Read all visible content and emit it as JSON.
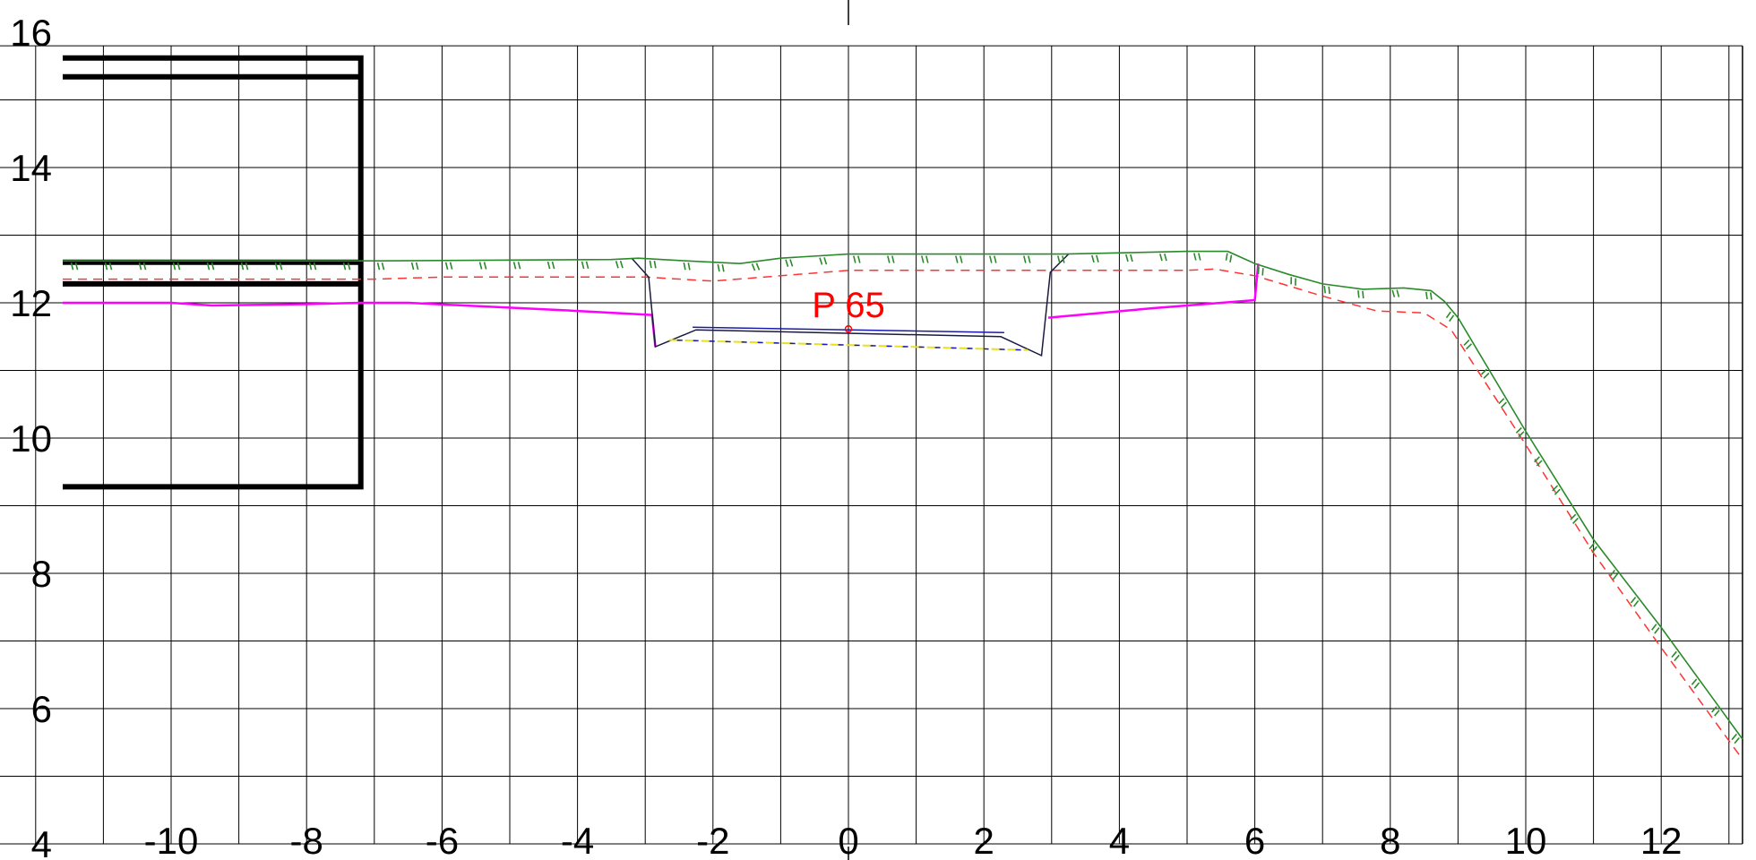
{
  "drawing": {
    "x_ticks": [
      "-10",
      "-8",
      "-6",
      "-4",
      "-2",
      "0",
      "2",
      "4",
      "6",
      "8",
      "10",
      "12"
    ],
    "y_ticks": [
      "4",
      "6",
      "8",
      "10",
      "12",
      "14",
      "16"
    ],
    "x_range": [
      -13.2,
      13.2
    ],
    "y_range": [
      4,
      16
    ],
    "grid": true,
    "point_label": "P 65",
    "point": {
      "x": 0,
      "y": 11.6
    },
    "colors": {
      "grid": "#000000",
      "terrain": "#2a8a2a",
      "hatch": "#2a8a2a",
      "design": "#ff3333",
      "magenta": "#ff00ff",
      "label": "#ff0000",
      "blue": "#1a1aa8",
      "yellow": "#e8e020",
      "structure": "#000000"
    },
    "lines": {
      "terrain": [
        [
          -11.6,
          12.62
        ],
        [
          -6.9,
          12.62
        ],
        [
          -3.5,
          12.64
        ],
        [
          -3.1,
          12.66
        ],
        [
          -2.4,
          12.62
        ],
        [
          -1.6,
          12.58
        ],
        [
          -1,
          12.66
        ],
        [
          0,
          12.72
        ],
        [
          1,
          12.72
        ],
        [
          2,
          12.72
        ],
        [
          3.2,
          12.72
        ],
        [
          5,
          12.76
        ],
        [
          5.6,
          12.76
        ],
        [
          6,
          12.58
        ],
        [
          6.5,
          12.42
        ],
        [
          7,
          12.28
        ],
        [
          7.6,
          12.2
        ],
        [
          8.2,
          12.22
        ],
        [
          8.6,
          12.18
        ],
        [
          8.8,
          12.02
        ],
        [
          9,
          11.78
        ],
        [
          10,
          10.1
        ],
        [
          11,
          8.5
        ],
        [
          12,
          7.2
        ],
        [
          13.2,
          5.55
        ]
      ],
      "design": [
        [
          -11.6,
          12.35
        ],
        [
          -7,
          12.35
        ],
        [
          -6,
          12.38
        ],
        [
          -4.5,
          12.38
        ],
        [
          -3,
          12.38
        ],
        [
          -2,
          12.32
        ],
        [
          -1,
          12.4
        ],
        [
          0,
          12.48
        ],
        [
          1,
          12.48
        ],
        [
          2,
          12.48
        ],
        [
          3,
          12.48
        ],
        [
          5,
          12.48
        ],
        [
          5.4,
          12.5
        ],
        [
          6,
          12.4
        ],
        [
          7,
          12.1
        ],
        [
          7.8,
          11.88
        ],
        [
          8.5,
          11.85
        ],
        [
          8.9,
          11.6
        ],
        [
          10,
          9.9
        ],
        [
          11,
          8.3
        ],
        [
          12,
          6.9
        ],
        [
          13.2,
          5.25
        ]
      ],
      "magenta_left": [
        [
          -11.6,
          12
        ],
        [
          -10,
          12
        ],
        [
          -9.4,
          11.96
        ],
        [
          -8,
          11.98
        ],
        [
          -7.2,
          12
        ],
        [
          -6.5,
          12
        ],
        [
          -4,
          11.88
        ],
        [
          -2.9,
          11.82
        ],
        [
          -2.85,
          11.35
        ]
      ],
      "magenta_right": [
        [
          2.95,
          11.78
        ],
        [
          4.5,
          11.92
        ],
        [
          6,
          12.04
        ],
        [
          6.05,
          12.58
        ]
      ],
      "structure": [
        [
          -3.2,
          12.66
        ],
        [
          -2.95,
          12.38
        ],
        [
          -2.85,
          11.35
        ],
        [
          -2.25,
          11.6
        ],
        [
          2.25,
          11.5
        ],
        [
          2.85,
          11.22
        ],
        [
          2.98,
          12.45
        ],
        [
          3.25,
          12.72
        ]
      ],
      "blue_inner": [
        [
          -2.3,
          11.64
        ],
        [
          2.3,
          11.56
        ]
      ],
      "dashed_bottom": [
        [
          -2.65,
          11.45
        ],
        [
          2.65,
          11.3
        ]
      ],
      "bldg_rect": [
        [
          -11.6,
          15.62
        ],
        [
          -7.2,
          15.62
        ],
        [
          -7.2,
          9.28
        ],
        [
          -11.6,
          9.28
        ]
      ],
      "bldg_lines": [
        [
          [
            -11.6,
            15.34
          ],
          [
            -7.2,
            15.34
          ]
        ],
        [
          [
            -11.6,
            12.6
          ],
          [
            -7.2,
            12.6
          ]
        ],
        [
          [
            -11.6,
            12.28
          ],
          [
            -7.2,
            12.28
          ]
        ]
      ]
    }
  }
}
